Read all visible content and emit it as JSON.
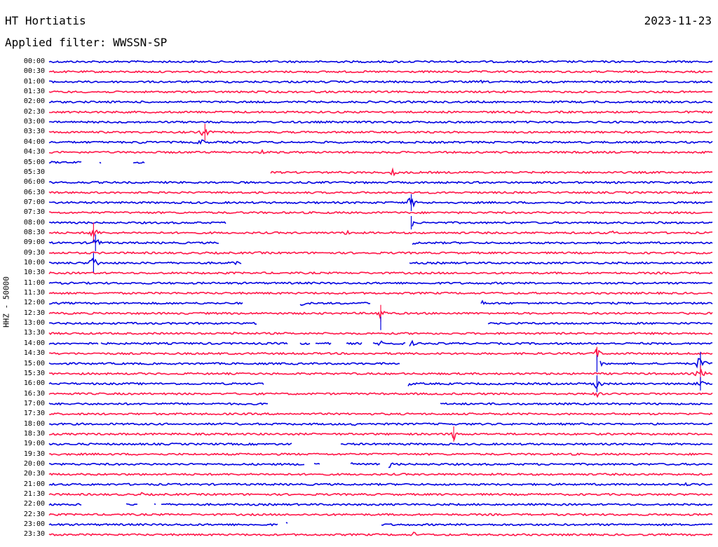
{
  "header": {
    "station": "HT Hortiatis",
    "date": "2023-11-23",
    "filter_label": "Applied filter:",
    "filter_value": "WWSSN-SP"
  },
  "channel_label": "HHZ - 50000",
  "colors": {
    "even_row": "#0000e0",
    "odd_row": "#ff1447",
    "background": "#ffffff"
  },
  "rows": [
    {
      "time": "00:00",
      "gaps": [],
      "events": []
    },
    {
      "time": "00:30",
      "gaps": [],
      "events": []
    },
    {
      "time": "01:00",
      "gaps": [],
      "events": [
        {
          "t": 0.65,
          "a": 3
        }
      ]
    },
    {
      "time": "01:30",
      "gaps": [],
      "events": []
    },
    {
      "time": "02:00",
      "gaps": [],
      "events": []
    },
    {
      "time": "02:30",
      "gaps": [],
      "events": []
    },
    {
      "time": "03:00",
      "gaps": [],
      "events": []
    },
    {
      "time": "03:30",
      "gaps": [],
      "events": [
        {
          "t": 0.235,
          "a": 10
        }
      ]
    },
    {
      "time": "04:00",
      "gaps": [],
      "events": [
        {
          "t": 0.142,
          "a": 5
        },
        {
          "t": 0.23,
          "a": 6
        }
      ]
    },
    {
      "time": "04:30",
      "gaps": [],
      "events": [
        {
          "t": 0.32,
          "a": 4
        }
      ]
    },
    {
      "time": "05:00",
      "gaps": [
        [
          0.05,
          0.075
        ],
        [
          0.08,
          0.125
        ],
        [
          0.145,
          1.0
        ]
      ],
      "events": []
    },
    {
      "time": "05:30",
      "gaps": [
        [
          0.0,
          0.333
        ]
      ],
      "events": [
        {
          "t": 0.52,
          "a": 7
        },
        {
          "t": 0.75,
          "a": 2
        }
      ]
    },
    {
      "time": "06:00",
      "gaps": [],
      "events": []
    },
    {
      "time": "06:30",
      "gaps": [],
      "events": []
    },
    {
      "time": "07:00",
      "gaps": [],
      "events": [
        {
          "t": 0.546,
          "a": 10
        }
      ]
    },
    {
      "time": "07:30",
      "gaps": [],
      "events": []
    },
    {
      "time": "08:00",
      "gaps": [
        [
          0.268,
          0.546
        ]
      ],
      "events": [
        {
          "t": 0.546,
          "a": 8
        },
        {
          "t": 0.92,
          "a": 3
        }
      ]
    },
    {
      "time": "08:30",
      "gaps": [],
      "events": [
        {
          "t": 0.067,
          "a": 12
        },
        {
          "t": 0.45,
          "a": 5
        },
        {
          "t": 0.85,
          "a": 4
        }
      ]
    },
    {
      "time": "09:00",
      "gaps": [
        [
          0.256,
          0.546
        ]
      ],
      "events": [
        {
          "t": 0.07,
          "a": 10
        },
        {
          "t": 0.546,
          "a": 6
        }
      ]
    },
    {
      "time": "09:30",
      "gaps": [],
      "events": [
        {
          "t": 0.32,
          "a": 3
        }
      ]
    },
    {
      "time": "10:00",
      "gaps": [
        [
          0.29,
          0.543
        ]
      ],
      "events": [
        {
          "t": 0.067,
          "a": 12
        },
        {
          "t": 0.28,
          "a": 4
        }
      ]
    },
    {
      "time": "10:30",
      "gaps": [],
      "events": []
    },
    {
      "time": "11:00",
      "gaps": [],
      "events": []
    },
    {
      "time": "11:30",
      "gaps": [],
      "events": []
    },
    {
      "time": "12:00",
      "gaps": [
        [
          0.293,
          0.378
        ],
        [
          0.486,
          0.65
        ]
      ],
      "events": [
        {
          "t": 0.38,
          "a": 5
        },
        {
          "t": 0.652,
          "a": 5
        }
      ]
    },
    {
      "time": "12:30",
      "gaps": [],
      "events": [
        {
          "t": 0.5,
          "a": 10
        }
      ]
    },
    {
      "time": "13:00",
      "gaps": [
        [
          0.313,
          0.66
        ]
      ],
      "events": [
        {
          "t": 0.5,
          "a": 8
        }
      ]
    },
    {
      "time": "13:30",
      "gaps": [],
      "events": [
        {
          "t": 0.28,
          "a": 5
        }
      ]
    },
    {
      "time": "14:00",
      "gaps": [
        [
          0.075,
          0.078
        ],
        [
          0.36,
          0.378
        ],
        [
          0.395,
          0.4
        ],
        [
          0.425,
          0.448
        ],
        [
          0.472,
          0.488
        ],
        [
          0.537,
          0.542
        ]
      ],
      "events": [
        {
          "t": 0.37,
          "a": 5
        },
        {
          "t": 0.502,
          "a": 6
        },
        {
          "t": 0.545,
          "a": 6
        }
      ]
    },
    {
      "time": "14:30",
      "gaps": [],
      "events": [
        {
          "t": 0.22,
          "a": 3
        },
        {
          "t": 0.826,
          "a": 8
        }
      ]
    },
    {
      "time": "15:00",
      "gaps": [
        [
          0.53,
          0.83
        ]
      ],
      "events": [
        {
          "t": 0.826,
          "a": 10
        },
        {
          "t": 0.982,
          "a": 14
        }
      ]
    },
    {
      "time": "15:30",
      "gaps": [],
      "events": [
        {
          "t": 0.982,
          "a": 10
        }
      ]
    },
    {
      "time": "16:00",
      "gaps": [
        [
          0.325,
          0.54
        ]
      ],
      "events": [
        {
          "t": 0.54,
          "a": 6
        },
        {
          "t": 0.826,
          "a": 10
        },
        {
          "t": 0.982,
          "a": 8
        }
      ]
    },
    {
      "time": "16:30",
      "gaps": [],
      "events": [
        {
          "t": 0.826,
          "a": 5
        }
      ]
    },
    {
      "time": "17:00",
      "gaps": [
        [
          0.33,
          0.588
        ]
      ],
      "events": []
    },
    {
      "time": "17:30",
      "gaps": [],
      "events": []
    },
    {
      "time": "18:00",
      "gaps": [],
      "events": [
        {
          "t": 0.46,
          "a": 3
        }
      ]
    },
    {
      "time": "18:30",
      "gaps": [],
      "events": [
        {
          "t": 0.61,
          "a": 9
        }
      ]
    },
    {
      "time": "19:00",
      "gaps": [
        [
          0.366,
          0.438
        ]
      ],
      "events": []
    },
    {
      "time": "19:30",
      "gaps": [],
      "events": []
    },
    {
      "time": "20:00",
      "gaps": [
        [
          0.386,
          0.398
        ],
        [
          0.41,
          0.453
        ],
        [
          0.5,
          0.51
        ]
      ],
      "events": [
        {
          "t": 0.4,
          "a": 7
        },
        {
          "t": 0.455,
          "a": 5
        },
        {
          "t": 0.512,
          "a": 6
        }
      ]
    },
    {
      "time": "20:30",
      "gaps": [],
      "events": []
    },
    {
      "time": "21:00",
      "gaps": [],
      "events": [
        {
          "t": 0.96,
          "a": 3
        }
      ]
    },
    {
      "time": "21:30",
      "gaps": [],
      "events": [
        {
          "t": 0.14,
          "a": 3
        }
      ]
    },
    {
      "time": "22:00",
      "gaps": [
        [
          0.05,
          0.116
        ],
        [
          0.135,
          0.158
        ],
        [
          0.162,
          0.168
        ]
      ],
      "events": []
    },
    {
      "time": "22:30",
      "gaps": [],
      "events": []
    },
    {
      "time": "23:00",
      "gaps": [
        [
          0.345,
          0.357
        ],
        [
          0.36,
          0.5
        ]
      ],
      "events": [
        {
          "t": 0.355,
          "a": 6
        },
        {
          "t": 0.39,
          "a": 4
        },
        {
          "t": 0.43,
          "a": 4
        }
      ]
    },
    {
      "time": "23:30",
      "gaps": [],
      "events": [
        {
          "t": 0.55,
          "a": 4
        }
      ]
    }
  ]
}
